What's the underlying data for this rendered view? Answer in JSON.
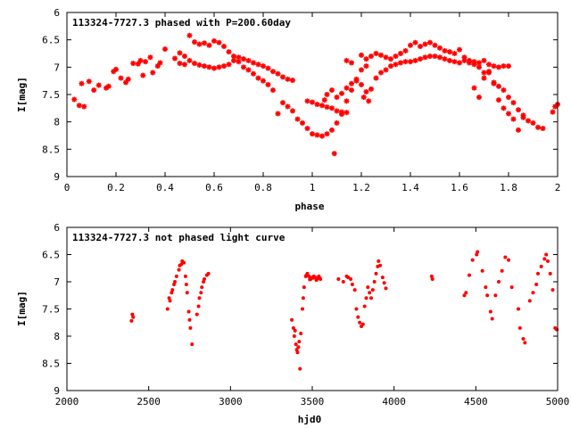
{
  "colors": {
    "points": "#ff0000",
    "axes": "#000000",
    "background": "#ffffff"
  },
  "chart_data": [
    {
      "type": "scatter",
      "title": "113324-7727.3 phased with P=200.60day",
      "xlabel": "phase",
      "ylabel": "I[mag]",
      "xlim": [
        0,
        2
      ],
      "ylim": [
        6,
        9
      ],
      "y_inverted": true,
      "grid": false,
      "marker": "star",
      "x_ticks": [
        0,
        0.2,
        0.4,
        0.6,
        0.8,
        1,
        1.2,
        1.4,
        1.6,
        1.8,
        2
      ],
      "x_tick_labels": [
        "0",
        "0.2",
        "0.4",
        "0.6",
        "0.8",
        "1",
        "1.2",
        "1.4",
        "1.6",
        "1.8",
        "2"
      ],
      "y_ticks": [
        6,
        6.5,
        7,
        7.5,
        8,
        8.5,
        9
      ],
      "y_tick_labels": [
        "6",
        "6.5",
        "7",
        "7.5",
        "8",
        "8.5",
        "9"
      ],
      "points": [
        [
          0.03,
          7.59
        ],
        [
          0.05,
          7.7
        ],
        [
          0.06,
          7.3
        ],
        [
          0.07,
          7.72
        ],
        [
          0.09,
          7.26
        ],
        [
          0.11,
          7.42
        ],
        [
          0.13,
          7.33
        ],
        [
          0.16,
          7.38
        ],
        [
          0.17,
          7.35
        ],
        [
          0.19,
          7.08
        ],
        [
          0.2,
          7.04
        ],
        [
          0.22,
          7.2
        ],
        [
          0.24,
          7.28
        ],
        [
          0.25,
          7.22
        ],
        [
          0.27,
          6.93
        ],
        [
          0.29,
          6.94
        ],
        [
          0.3,
          6.88
        ],
        [
          0.31,
          7.15
        ],
        [
          0.32,
          6.9
        ],
        [
          0.34,
          6.82
        ],
        [
          0.35,
          7.1
        ],
        [
          0.37,
          6.98
        ],
        [
          0.38,
          6.92
        ],
        [
          0.4,
          6.67
        ],
        [
          0.44,
          6.84
        ],
        [
          0.46,
          6.93
        ],
        [
          0.48,
          6.95
        ],
        [
          0.5,
          6.42
        ],
        [
          0.52,
          6.54
        ],
        [
          0.54,
          6.58
        ],
        [
          0.56,
          6.56
        ],
        [
          0.58,
          6.6
        ],
        [
          0.6,
          6.52
        ],
        [
          0.62,
          6.55
        ],
        [
          0.64,
          6.62
        ],
        [
          0.66,
          6.72
        ],
        [
          0.68,
          6.8
        ],
        [
          0.7,
          6.9
        ],
        [
          0.72,
          7.0
        ],
        [
          0.74,
          7.05
        ],
        [
          0.76,
          7.12
        ],
        [
          0.78,
          7.2
        ],
        [
          0.8,
          7.25
        ],
        [
          0.82,
          7.32
        ],
        [
          0.84,
          7.42
        ],
        [
          0.46,
          6.74
        ],
        [
          0.48,
          6.8
        ],
        [
          0.5,
          6.88
        ],
        [
          0.52,
          6.93
        ],
        [
          0.54,
          6.96
        ],
        [
          0.56,
          6.98
        ],
        [
          0.58,
          7.0
        ],
        [
          0.6,
          7.02
        ],
        [
          0.62,
          7.0
        ],
        [
          0.64,
          6.98
        ],
        [
          0.66,
          6.95
        ],
        [
          0.68,
          6.88
        ],
        [
          0.7,
          6.82
        ],
        [
          0.72,
          6.85
        ],
        [
          0.74,
          6.88
        ],
        [
          0.76,
          6.92
        ],
        [
          0.78,
          6.95
        ],
        [
          0.8,
          6.98
        ],
        [
          0.82,
          7.02
        ],
        [
          0.84,
          7.08
        ],
        [
          0.86,
          7.12
        ],
        [
          0.88,
          7.18
        ],
        [
          0.9,
          7.22
        ],
        [
          0.92,
          7.24
        ],
        [
          0.86,
          7.85
        ],
        [
          0.88,
          7.65
        ],
        [
          0.9,
          7.72
        ],
        [
          0.92,
          7.8
        ],
        [
          0.94,
          7.95
        ],
        [
          0.96,
          8.02
        ],
        [
          0.98,
          8.12
        ],
        [
          1.0,
          8.22
        ],
        [
          1.02,
          8.24
        ],
        [
          1.04,
          8.26
        ],
        [
          1.06,
          8.22
        ],
        [
          1.08,
          8.15
        ],
        [
          1.09,
          8.58
        ],
        [
          1.1,
          8.02
        ],
        [
          1.12,
          7.86
        ],
        [
          1.14,
          7.62
        ],
        [
          1.16,
          7.42
        ],
        [
          1.18,
          7.22
        ],
        [
          1.2,
          7.05
        ],
        [
          1.22,
          6.98
        ],
        [
          0.98,
          7.62
        ],
        [
          1.0,
          7.64
        ],
        [
          1.02,
          7.68
        ],
        [
          1.04,
          7.7
        ],
        [
          1.06,
          7.73
        ],
        [
          1.08,
          7.75
        ],
        [
          1.1,
          7.8
        ],
        [
          1.12,
          7.82
        ],
        [
          1.14,
          7.83
        ],
        [
          1.05,
          7.6
        ],
        [
          1.06,
          7.5
        ],
        [
          1.08,
          7.42
        ],
        [
          1.1,
          7.55
        ],
        [
          1.12,
          7.48
        ],
        [
          1.14,
          7.38
        ],
        [
          1.16,
          7.3
        ],
        [
          1.18,
          7.25
        ],
        [
          1.2,
          7.32
        ],
        [
          1.21,
          7.55
        ],
        [
          1.22,
          7.45
        ],
        [
          1.23,
          7.62
        ],
        [
          1.24,
          7.4
        ],
        [
          1.26,
          7.2
        ],
        [
          1.28,
          7.1
        ],
        [
          1.3,
          7.05
        ],
        [
          1.32,
          6.98
        ],
        [
          1.34,
          6.95
        ],
        [
          1.36,
          6.92
        ],
        [
          1.38,
          6.9
        ],
        [
          1.4,
          6.9
        ],
        [
          1.42,
          6.88
        ],
        [
          1.44,
          6.85
        ],
        [
          1.46,
          6.82
        ],
        [
          1.48,
          6.8
        ],
        [
          1.5,
          6.8
        ],
        [
          1.52,
          6.82
        ],
        [
          1.54,
          6.85
        ],
        [
          1.56,
          6.88
        ],
        [
          1.58,
          6.9
        ],
        [
          1.6,
          6.92
        ],
        [
          1.14,
          6.88
        ],
        [
          1.16,
          6.92
        ],
        [
          1.2,
          6.78
        ],
        [
          1.22,
          6.85
        ],
        [
          1.24,
          6.8
        ],
        [
          1.26,
          6.75
        ],
        [
          1.28,
          6.78
        ],
        [
          1.3,
          6.82
        ],
        [
          1.32,
          6.85
        ],
        [
          1.34,
          6.8
        ],
        [
          1.36,
          6.75
        ],
        [
          1.38,
          6.7
        ],
        [
          1.4,
          6.6
        ],
        [
          1.42,
          6.55
        ],
        [
          1.44,
          6.62
        ],
        [
          1.46,
          6.58
        ],
        [
          1.48,
          6.55
        ],
        [
          1.5,
          6.6
        ],
        [
          1.52,
          6.65
        ],
        [
          1.54,
          6.7
        ],
        [
          1.56,
          6.72
        ],
        [
          1.58,
          6.75
        ],
        [
          1.6,
          6.68
        ],
        [
          1.62,
          6.82
        ],
        [
          1.64,
          6.88
        ],
        [
          1.66,
          6.9
        ],
        [
          1.68,
          6.92
        ],
        [
          1.7,
          6.88
        ],
        [
          1.72,
          6.95
        ],
        [
          1.74,
          6.98
        ],
        [
          1.76,
          7.0
        ],
        [
          1.78,
          6.98
        ],
        [
          1.8,
          6.98
        ],
        [
          1.62,
          6.88
        ],
        [
          1.64,
          6.92
        ],
        [
          1.66,
          6.95
        ],
        [
          1.68,
          7.0
        ],
        [
          1.7,
          7.1
        ],
        [
          1.72,
          7.08
        ],
        [
          1.74,
          7.3
        ],
        [
          1.76,
          7.35
        ],
        [
          1.78,
          7.42
        ],
        [
          1.8,
          7.55
        ],
        [
          1.82,
          7.65
        ],
        [
          1.84,
          7.78
        ],
        [
          1.86,
          7.92
        ],
        [
          1.88,
          7.98
        ],
        [
          1.9,
          8.02
        ],
        [
          1.66,
          7.38
        ],
        [
          1.68,
          7.55
        ],
        [
          1.7,
          7.2
        ],
        [
          1.72,
          7.1
        ],
        [
          1.74,
          7.28
        ],
        [
          1.76,
          7.6
        ],
        [
          1.78,
          7.75
        ],
        [
          1.8,
          7.85
        ],
        [
          1.82,
          7.95
        ],
        [
          1.84,
          8.15
        ],
        [
          1.86,
          7.88
        ],
        [
          1.92,
          8.1
        ],
        [
          1.94,
          8.12
        ],
        [
          1.98,
          7.82
        ],
        [
          1.99,
          7.72
        ],
        [
          2.0,
          7.68
        ]
      ]
    },
    {
      "type": "scatter",
      "title": "113324-7727.3 not phased light curve",
      "xlabel": "hjd0",
      "ylabel": "I[mag]",
      "xlim": [
        2000,
        5000
      ],
      "ylim": [
        6,
        9
      ],
      "y_inverted": true,
      "grid": false,
      "marker": "dot",
      "x_ticks": [
        2000,
        2500,
        3000,
        3500,
        4000,
        4500,
        5000
      ],
      "x_tick_labels": [
        "2000",
        "2500",
        "3000",
        "3500",
        "4000",
        "4500",
        "5000"
      ],
      "y_ticks": [
        6,
        6.5,
        7,
        7.5,
        8,
        8.5,
        9
      ],
      "y_tick_labels": [
        "6",
        "6.5",
        "7",
        "7.5",
        "8",
        "8.5",
        "9"
      ],
      "points": [
        [
          2395,
          7.72
        ],
        [
          2400,
          7.6
        ],
        [
          2405,
          7.65
        ],
        [
          2615,
          7.5
        ],
        [
          2625,
          7.3
        ],
        [
          2640,
          7.2
        ],
        [
          2655,
          7.05
        ],
        [
          2670,
          6.9
        ],
        [
          2685,
          6.78
        ],
        [
          2700,
          6.68
        ],
        [
          2715,
          6.65
        ],
        [
          2725,
          6.9
        ],
        [
          2735,
          7.2
        ],
        [
          2745,
          7.55
        ],
        [
          2755,
          7.85
        ],
        [
          2765,
          8.15
        ],
        [
          2795,
          7.6
        ],
        [
          2810,
          7.3
        ],
        [
          2825,
          7.1
        ],
        [
          2840,
          6.95
        ],
        [
          2855,
          6.88
        ],
        [
          2865,
          6.85
        ],
        [
          2630,
          7.35
        ],
        [
          2645,
          7.15
        ],
        [
          2660,
          7.0
        ],
        [
          2690,
          6.7
        ],
        [
          2705,
          6.62
        ],
        [
          2730,
          7.05
        ],
        [
          2750,
          7.7
        ],
        [
          2805,
          7.45
        ],
        [
          2820,
          7.2
        ],
        [
          2835,
          7.0
        ],
        [
          3375,
          7.7
        ],
        [
          3385,
          7.85
        ],
        [
          3390,
          8.0
        ],
        [
          3400,
          8.15
        ],
        [
          3405,
          8.25
        ],
        [
          3415,
          8.2
        ],
        [
          3420,
          8.1
        ],
        [
          3425,
          8.6
        ],
        [
          3430,
          7.95
        ],
        [
          3440,
          7.5
        ],
        [
          3450,
          7.1
        ],
        [
          3460,
          6.9
        ],
        [
          3470,
          6.85
        ],
        [
          3480,
          6.9
        ],
        [
          3490,
          6.95
        ],
        [
          3500,
          6.92
        ],
        [
          3510,
          6.9
        ],
        [
          3520,
          6.92
        ],
        [
          3530,
          6.95
        ],
        [
          3540,
          6.9
        ],
        [
          3550,
          6.95
        ],
        [
          3395,
          7.9
        ],
        [
          3410,
          8.3
        ],
        [
          3445,
          7.3
        ],
        [
          3465,
          6.88
        ],
        [
          3485,
          6.96
        ],
        [
          3505,
          6.93
        ],
        [
          3525,
          6.97
        ],
        [
          3545,
          6.93
        ],
        [
          3660,
          6.95
        ],
        [
          3690,
          7.0
        ],
        [
          3710,
          6.9
        ],
        [
          3720,
          6.92
        ],
        [
          3735,
          6.95
        ],
        [
          3745,
          7.05
        ],
        [
          3760,
          7.15
        ],
        [
          3770,
          7.5
        ],
        [
          3780,
          7.65
        ],
        [
          3790,
          7.75
        ],
        [
          3800,
          7.82
        ],
        [
          3810,
          7.78
        ],
        [
          3820,
          7.45
        ],
        [
          3830,
          7.3
        ],
        [
          3840,
          7.1
        ],
        [
          3850,
          7.2
        ],
        [
          3860,
          7.3
        ],
        [
          3870,
          7.15
        ],
        [
          3880,
          7.0
        ],
        [
          3890,
          6.85
        ],
        [
          3900,
          6.72
        ],
        [
          3905,
          6.62
        ],
        [
          3915,
          6.7
        ],
        [
          3930,
          6.92
        ],
        [
          3940,
          7.02
        ],
        [
          3950,
          7.12
        ],
        [
          4230,
          6.9
        ],
        [
          4235,
          6.95
        ],
        [
          4430,
          7.25
        ],
        [
          4440,
          7.2
        ],
        [
          4460,
          6.88
        ],
        [
          4480,
          6.6
        ],
        [
          4505,
          6.5
        ],
        [
          4510,
          6.45
        ],
        [
          4540,
          6.8
        ],
        [
          4560,
          7.1
        ],
        [
          4570,
          7.25
        ],
        [
          4590,
          7.55
        ],
        [
          4600,
          7.68
        ],
        [
          4620,
          7.25
        ],
        [
          4640,
          7.0
        ],
        [
          4660,
          6.8
        ],
        [
          4680,
          6.55
        ],
        [
          4700,
          6.6
        ],
        [
          4720,
          7.1
        ],
        [
          4760,
          7.5
        ],
        [
          4770,
          7.85
        ],
        [
          4790,
          8.05
        ],
        [
          4800,
          8.12
        ],
        [
          4830,
          7.35
        ],
        [
          4850,
          7.2
        ],
        [
          4870,
          7.05
        ],
        [
          4880,
          6.85
        ],
        [
          4900,
          6.72
        ],
        [
          4920,
          6.58
        ],
        [
          4930,
          6.5
        ],
        [
          4940,
          6.62
        ],
        [
          4955,
          6.85
        ],
        [
          4970,
          7.15
        ],
        [
          4985,
          7.85
        ],
        [
          4995,
          7.88
        ]
      ]
    }
  ]
}
